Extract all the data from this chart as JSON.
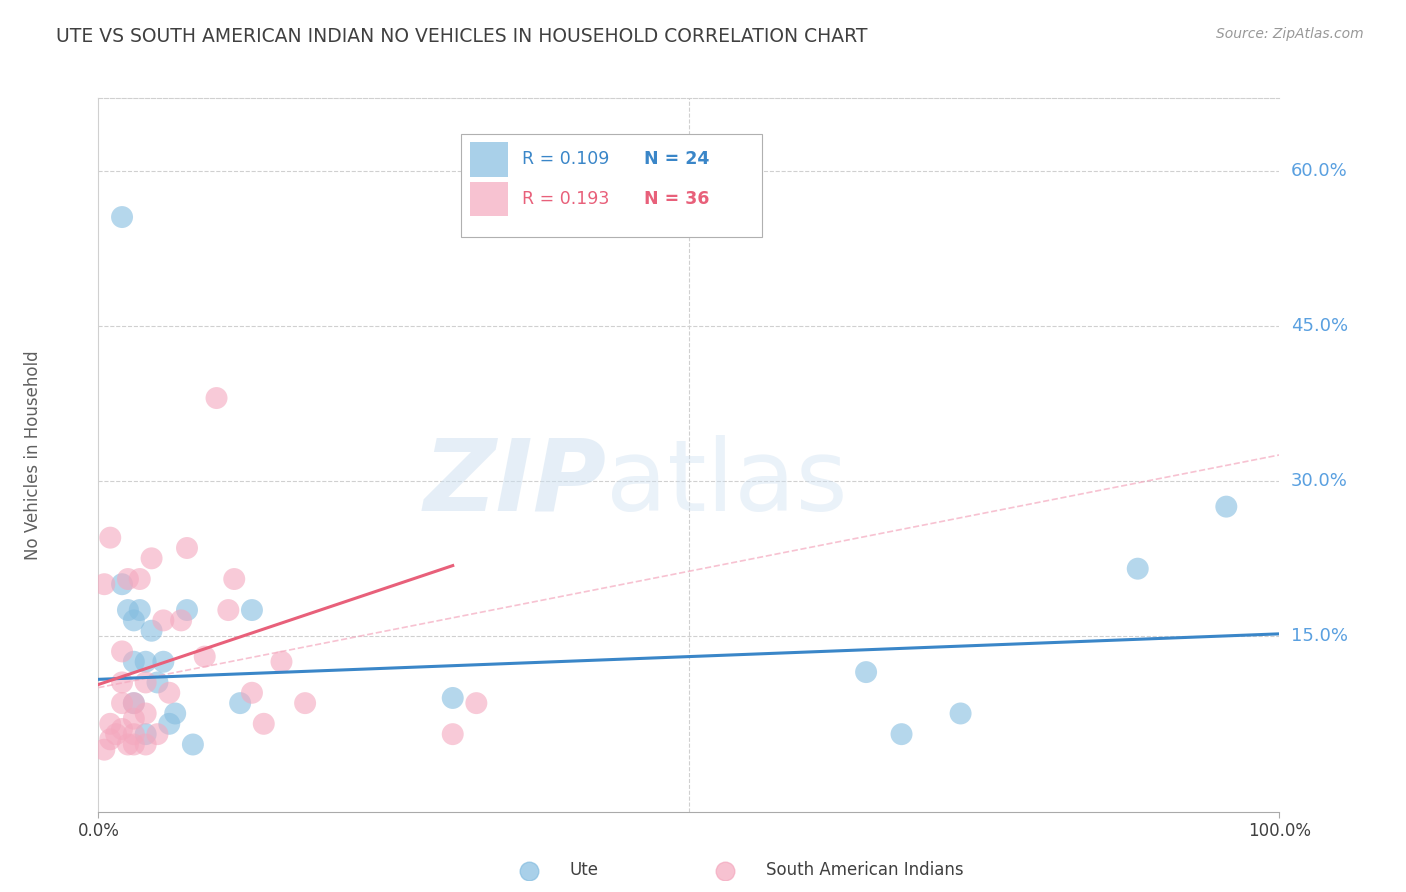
{
  "title": "UTE VS SOUTH AMERICAN INDIAN NO VEHICLES IN HOUSEHOLD CORRELATION CHART",
  "source_text": "Source: ZipAtlas.com",
  "ylabel": "No Vehicles in Household",
  "xlim": [
    0.0,
    1.0
  ],
  "ylim": [
    -0.02,
    0.67
  ],
  "yticks": [
    0.15,
    0.3,
    0.45,
    0.6
  ],
  "ytick_labels": [
    "15.0%",
    "30.0%",
    "45.0%",
    "60.0%"
  ],
  "xticks": [
    0.0,
    1.0
  ],
  "xtick_labels": [
    "0.0%",
    "100.0%"
  ],
  "legend_blue_r": "R = 0.109",
  "legend_blue_n": "N = 24",
  "legend_pink_r": "R = 0.193",
  "legend_pink_n": "N = 36",
  "watermark_zip": "ZIP",
  "watermark_atlas": "atlas",
  "blue_color": "#85bde0",
  "pink_color": "#f4a8be",
  "blue_line_color": "#3a86c8",
  "pink_line_color": "#e8607a",
  "blue_scatter_x": [
    0.02,
    0.02,
    0.025,
    0.03,
    0.03,
    0.03,
    0.035,
    0.04,
    0.04,
    0.045,
    0.05,
    0.055,
    0.06,
    0.065,
    0.075,
    0.08,
    0.12,
    0.13,
    0.3,
    0.65,
    0.68,
    0.73,
    0.88,
    0.955
  ],
  "blue_scatter_y": [
    0.555,
    0.2,
    0.175,
    0.165,
    0.125,
    0.085,
    0.175,
    0.125,
    0.055,
    0.155,
    0.105,
    0.125,
    0.065,
    0.075,
    0.175,
    0.045,
    0.085,
    0.175,
    0.09,
    0.115,
    0.055,
    0.075,
    0.215,
    0.275
  ],
  "pink_scatter_x": [
    0.005,
    0.01,
    0.01,
    0.015,
    0.02,
    0.02,
    0.02,
    0.02,
    0.025,
    0.025,
    0.03,
    0.03,
    0.03,
    0.03,
    0.035,
    0.04,
    0.04,
    0.04,
    0.045,
    0.05,
    0.055,
    0.06,
    0.07,
    0.075,
    0.09,
    0.1,
    0.11,
    0.115,
    0.13,
    0.14,
    0.155,
    0.175,
    0.3,
    0.32,
    0.005,
    0.01
  ],
  "pink_scatter_y": [
    0.04,
    0.05,
    0.065,
    0.055,
    0.06,
    0.085,
    0.105,
    0.135,
    0.045,
    0.205,
    0.045,
    0.055,
    0.07,
    0.085,
    0.205,
    0.045,
    0.075,
    0.105,
    0.225,
    0.055,
    0.165,
    0.095,
    0.165,
    0.235,
    0.13,
    0.38,
    0.175,
    0.205,
    0.095,
    0.065,
    0.125,
    0.085,
    0.055,
    0.085,
    0.2,
    0.245
  ],
  "blue_line_x0": 0.0,
  "blue_line_x1": 1.0,
  "blue_line_y0": 0.108,
  "blue_line_y1": 0.152,
  "pink_line_x0": 0.0,
  "pink_line_x1": 0.3,
  "pink_line_y0": 0.103,
  "pink_line_y1": 0.218,
  "dash_line_x0": 0.0,
  "dash_line_x1": 1.0,
  "dash_line_y0": 0.1,
  "dash_line_y1": 0.325,
  "background_color": "#ffffff",
  "grid_color": "#d0d0d0",
  "title_color": "#404040",
  "axis_label_color": "#606060",
  "ytick_color": "#5aa0e0",
  "xtick_color": "#404040"
}
